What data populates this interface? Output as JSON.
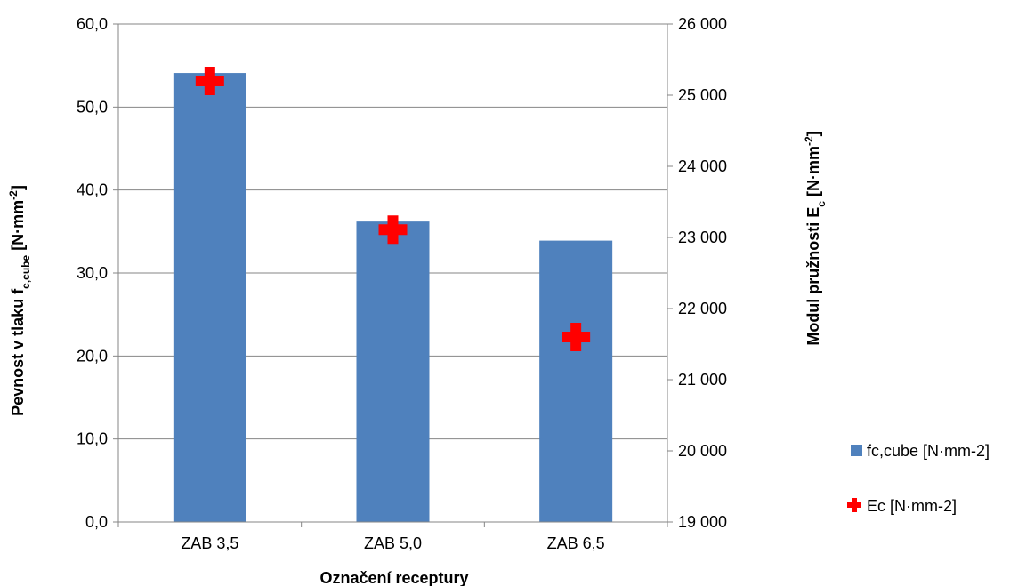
{
  "chart_data": {
    "type": "bar",
    "categories": [
      "ZAB 3,5",
      "ZAB 5,0",
      "ZAB 6,5"
    ],
    "series": [
      {
        "name": "fc,cube [N·mm-2]",
        "kind": "bar",
        "axis": "left",
        "color": "#4F81BD",
        "values": [
          54.1,
          36.2,
          33.9
        ]
      },
      {
        "name": "Ec [N·mm-2]",
        "kind": "marker",
        "marker": "plus",
        "axis": "right",
        "color": "#FF0000",
        "values": [
          25200,
          23110,
          21600
        ]
      }
    ],
    "xlabel": "Označení receptury",
    "ylabel": {
      "main": "Pevnost v tlaku f",
      "sub": "c,cube",
      "unit": " [N·mm",
      "sup": "-2",
      "close": "]"
    },
    "y2label": {
      "main": "Modul pružnosti E",
      "sub": "c",
      "unit": " [N·mm",
      "sup": "-2",
      "close": "]"
    },
    "ylim": [
      0,
      60
    ],
    "y2lim": [
      19000,
      26000
    ],
    "yticks": [
      "0,0",
      "10,0",
      "20,0",
      "30,0",
      "40,0",
      "50,0",
      "60,0"
    ],
    "y2ticks": [
      "19 000",
      "20 000",
      "21 000",
      "22 000",
      "23 000",
      "24 000",
      "25 000",
      "26 000"
    ],
    "grid": true,
    "legend_position": "right"
  }
}
